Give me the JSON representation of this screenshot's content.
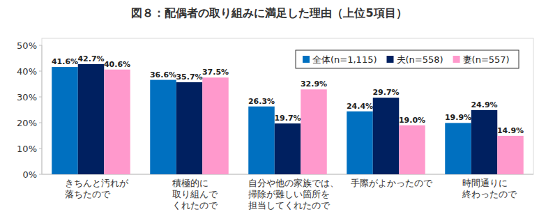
{
  "chart_data": {
    "type": "bar",
    "title": "図８：配偶者の取り組みに満足した理由（上位5項目）",
    "categories": [
      "きちんと汚れが\n落ちたので",
      "積極的に\n取り組んで\nくれたので",
      "自分や他の家族では、\n掃除が難しい箇所を\n担当してくれたので",
      "手際がよかったので",
      "時間通りに\n終わったので"
    ],
    "series": [
      {
        "name": "全体(n=1,115)",
        "color": "#0070c0",
        "values": [
          41.6,
          36.6,
          26.3,
          24.4,
          19.9
        ],
        "value_labels": [
          "41.6%",
          "36.6%",
          "26.3%",
          "24.4%",
          "19.9%"
        ]
      },
      {
        "name": "夫(n=558)",
        "color": "#002060",
        "values": [
          42.7,
          35.7,
          19.7,
          29.7,
          24.9
        ],
        "value_labels": [
          "42.7%",
          "35.7%",
          "19.7%",
          "29.7%",
          "24.9%"
        ]
      },
      {
        "name": "妻(n=557)",
        "color": "#ff99cc",
        "values": [
          40.6,
          37.5,
          32.9,
          19.0,
          14.9
        ],
        "value_labels": [
          "40.6%",
          "37.5%",
          "32.9%",
          "19.0%",
          "14.9%"
        ]
      }
    ],
    "ylim": [
      0,
      50
    ],
    "yticks": [
      {
        "value": 0,
        "label": "0%"
      },
      {
        "value": 10,
        "label": "10%"
      },
      {
        "value": 20,
        "label": "20%"
      },
      {
        "value": 30,
        "label": "30%"
      },
      {
        "value": 40,
        "label": "40%"
      },
      {
        "value": 50,
        "label": "50%"
      }
    ],
    "grid": false,
    "legend": "top-right",
    "data_labels": true
  }
}
